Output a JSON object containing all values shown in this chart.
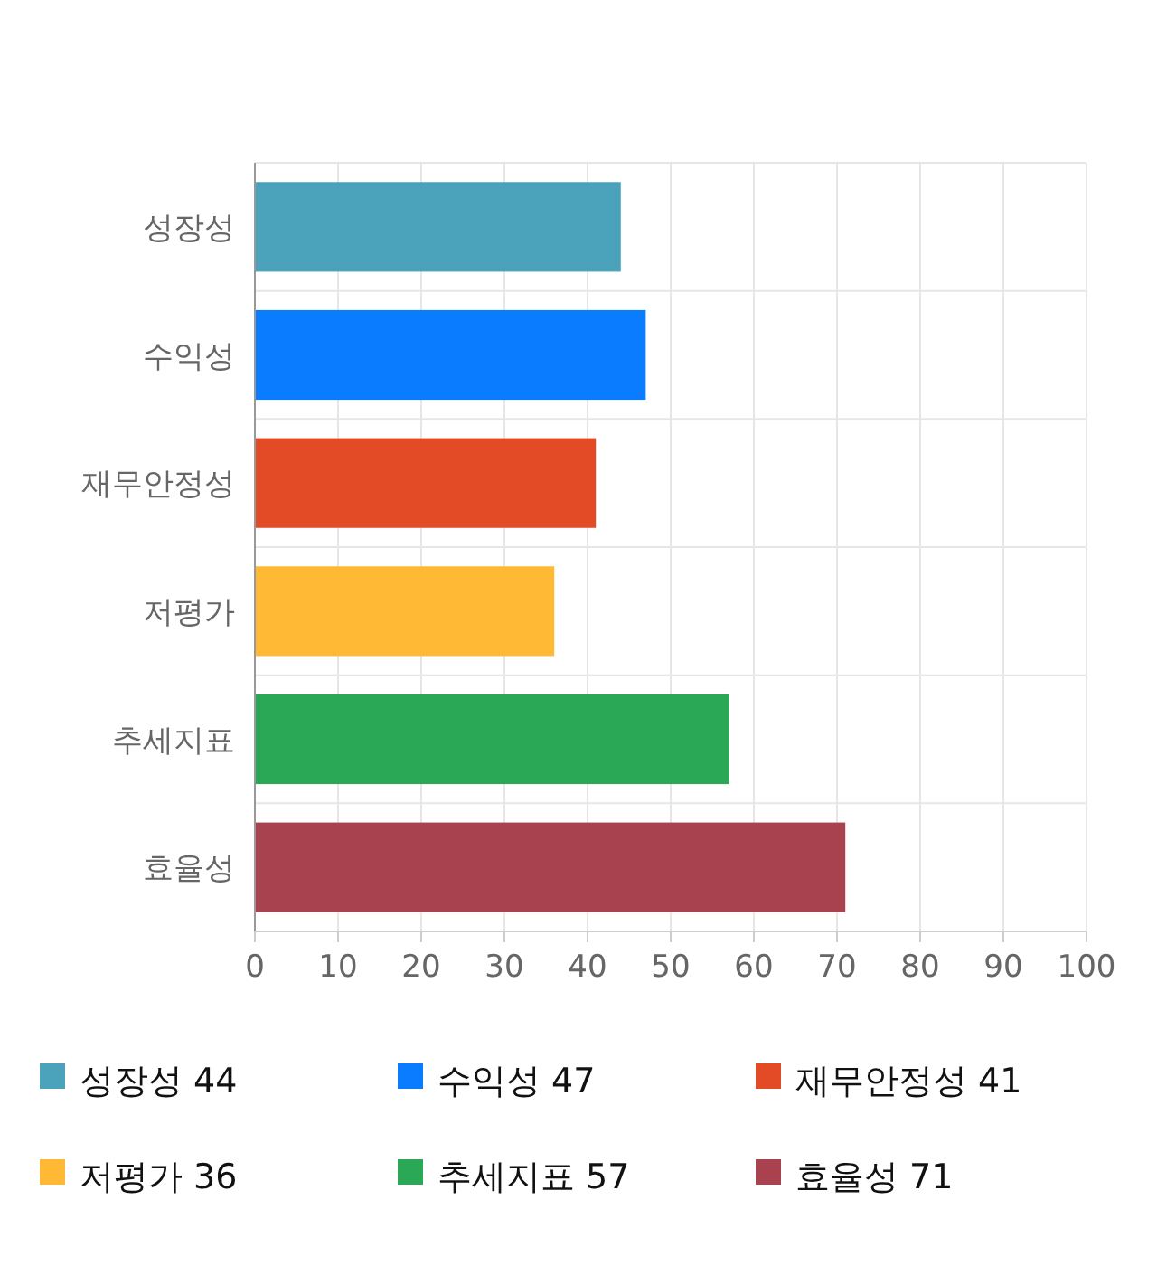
{
  "chart_data": {
    "type": "bar",
    "orientation": "horizontal",
    "stacked": true,
    "categories": [
      "성장성",
      "수익성",
      "재무안정성",
      "저평가",
      "추세지표",
      "효율성"
    ],
    "series": [
      {
        "name": "성장성 44",
        "color": "#4aa3bb",
        "values": [
          44,
          null,
          null,
          null,
          null,
          null
        ]
      },
      {
        "name": "수익성 47",
        "color": "#0a7cff",
        "values": [
          null,
          47,
          null,
          null,
          null,
          null
        ]
      },
      {
        "name": "재무안정성 41",
        "color": "#e34a26",
        "values": [
          null,
          null,
          41,
          null,
          null,
          null
        ]
      },
      {
        "name": "저평가 36",
        "color": "#ffb935",
        "values": [
          null,
          null,
          null,
          36,
          null,
          null
        ]
      },
      {
        "name": "추세지표 57",
        "color": "#2aa855",
        "values": [
          null,
          null,
          null,
          null,
          57,
          null
        ]
      },
      {
        "name": "효율성 71",
        "color": "#a8424f",
        "values": [
          null,
          null,
          null,
          null,
          null,
          71
        ]
      }
    ],
    "xlim": [
      0,
      100
    ],
    "xticks": [
      0,
      10,
      20,
      30,
      40,
      50,
      60,
      70,
      80,
      90,
      100
    ],
    "grid": true,
    "legend": "bottom"
  }
}
